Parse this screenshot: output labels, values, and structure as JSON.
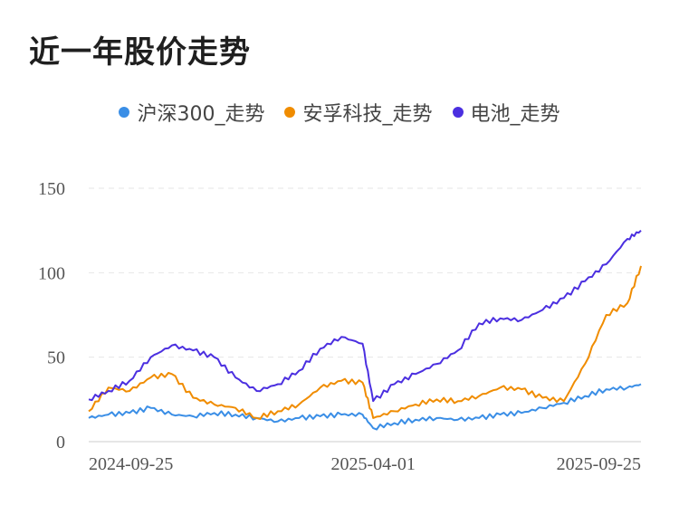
{
  "page": {
    "title": "近一年股价走势"
  },
  "chart_data": {
    "type": "line",
    "title": "近一年股价走势",
    "xlabel": "",
    "ylabel": "",
    "ylim": [
      0,
      150
    ],
    "yticks": [
      "150",
      "100",
      "50",
      "0"
    ],
    "xticks": [
      "2024-09-25",
      "2025-04-01",
      "2025-09-25"
    ],
    "grid": true,
    "legend_position": "top-center",
    "x": [
      "2024-09-25",
      "2024-10-08",
      "2024-10-22",
      "2024-11-05",
      "2024-11-19",
      "2024-12-03",
      "2024-12-17",
      "2024-12-31",
      "2025-01-14",
      "2025-01-28",
      "2025-02-11",
      "2025-02-25",
      "2025-03-11",
      "2025-03-25",
      "2025-04-01",
      "2025-04-15",
      "2025-04-29",
      "2025-05-13",
      "2025-05-27",
      "2025-06-10",
      "2025-06-24",
      "2025-07-08",
      "2025-07-22",
      "2025-08-05",
      "2025-08-19",
      "2025-09-02",
      "2025-09-16",
      "2025-09-25"
    ],
    "series": [
      {
        "name": "沪深300_走势",
        "color": "#3a8ee6",
        "values": [
          14,
          16,
          17,
          20,
          16,
          15,
          17,
          16,
          14,
          12,
          14,
          15,
          16,
          16,
          8,
          11,
          13,
          14,
          13,
          14,
          16,
          17,
          20,
          23,
          27,
          31,
          32,
          34
        ]
      },
      {
        "name": "安孚科技_走势",
        "color": "#f08c00",
        "values": [
          18,
          32,
          30,
          38,
          40,
          26,
          22,
          20,
          14,
          18,
          22,
          32,
          36,
          35,
          14,
          18,
          22,
          25,
          24,
          27,
          32,
          31,
          26,
          24,
          46,
          75,
          82,
          104
        ]
      },
      {
        "name": "电池_走势",
        "color": "#4b2fe0",
        "values": [
          25,
          30,
          36,
          50,
          57,
          54,
          50,
          38,
          30,
          34,
          42,
          55,
          62,
          58,
          24,
          34,
          40,
          46,
          54,
          70,
          73,
          72,
          78,
          85,
          95,
          105,
          120,
          125
        ]
      }
    ]
  }
}
